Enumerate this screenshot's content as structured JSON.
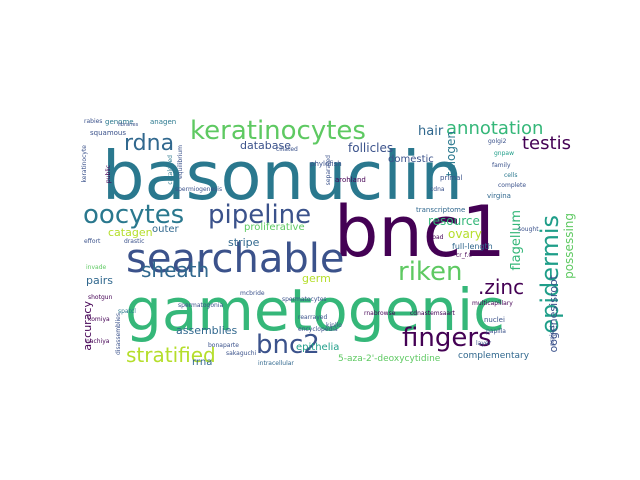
{
  "word_cloud": {
    "words": [
      {
        "text": "basonuclin",
        "color": "#2a788e"
      },
      {
        "text": "gametogenic",
        "color": "#35b779"
      },
      {
        "text": "bnc1",
        "color": "#440154"
      },
      {
        "text": "searchable",
        "color": "#3b528b"
      },
      {
        "text": "keratinocytes",
        "color": "#5ec962"
      },
      {
        "text": "pipeline",
        "color": "#3b528b"
      },
      {
        "text": "oocytes",
        "color": "#2a788e"
      },
      {
        "text": "fingers",
        "color": "#440154"
      },
      {
        "text": "epidermis",
        "color": "#1f9e89"
      },
      {
        "text": "rdna",
        "color": "#31688e"
      },
      {
        "text": "annotation",
        "color": "#35b779"
      },
      {
        "text": "sheath",
        "color": "#31688e"
      },
      {
        "text": "riken",
        "color": "#5ec962"
      },
      {
        "text": "bnc2",
        "color": "#3b528b"
      },
      {
        "text": "stratified",
        "color": "#b5de2b"
      },
      {
        "text": "testis",
        "color": "#440154"
      },
      {
        "text": ".zinc",
        "color": "#440154"
      },
      {
        "text": "database",
        "color": "#3b528b"
      },
      {
        "text": "follicles",
        "color": "#3b528b"
      },
      {
        "text": "hair",
        "color": "#31688e"
      },
      {
        "text": "domestic",
        "color": "#3b528b"
      },
      {
        "text": "telogen",
        "color": "#2a788e"
      },
      {
        "text": "flagellum",
        "color": "#35b779"
      },
      {
        "text": "possessing",
        "color": "#5ec962"
      },
      {
        "text": "oogenesisroot",
        "color": "#3b528b"
      },
      {
        "text": "ovary",
        "color": "#b5de2b"
      },
      {
        "text": "resource",
        "color": "#35b779"
      },
      {
        "text": "catagen",
        "color": "#b5de2b"
      },
      {
        "text": "outer",
        "color": "#31688e"
      },
      {
        "text": "stripe",
        "color": "#31688e"
      },
      {
        "text": "proliferative",
        "color": "#5ec962"
      },
      {
        "text": "pairs",
        "color": "#31688e"
      },
      {
        "text": "germ",
        "color": "#b5de2b"
      },
      {
        "text": "assemblies",
        "color": "#31688e"
      },
      {
        "text": "accuracy",
        "color": "#440154"
      },
      {
        "text": "epithelia",
        "color": "#1f9e89"
      },
      {
        "text": "rrna",
        "color": "#31688e"
      },
      {
        "text": "5-aza-2'-deoxycytidine",
        "color": "#5ec962"
      },
      {
        "text": "complementary",
        "color": "#31688e"
      },
      {
        "text": "full-length",
        "color": "#31688e"
      },
      {
        "text": "genome",
        "color": "#2a788e"
      },
      {
        "text": "anagen",
        "color": "#2a788e"
      },
      {
        "text": "squamous",
        "color": "#3b528b"
      },
      {
        "text": "spermiogenesis",
        "color": "#3b528b"
      },
      {
        "text": "phylofish",
        "color": "#3b528b"
      },
      {
        "text": "arohland",
        "color": "#440154"
      },
      {
        "text": "keratinocyte",
        "color": "#3b528b"
      },
      {
        "text": "transcriptome",
        "color": "#31688e"
      },
      {
        "text": "primal",
        "color": "#3b528b"
      },
      {
        "text": "virgina",
        "color": "#31688e"
      },
      {
        "text": "spermatogonia",
        "color": "#3b528b"
      },
      {
        "text": "spermatocytes",
        "color": "#3b528b"
      },
      {
        "text": "spatcl",
        "color": "#2a788e"
      },
      {
        "text": "shotgun",
        "color": "#440154"
      },
      {
        "text": "komiya",
        "color": "#440154"
      },
      {
        "text": "nachiya",
        "color": "#440154"
      },
      {
        "text": "bonaparte",
        "color": "#3b528b"
      },
      {
        "text": "sakaguchi",
        "color": "#3b528b"
      },
      {
        "text": "intracellular",
        "color": "#31688e"
      },
      {
        "text": "encyclopedia",
        "color": "#3b528b"
      },
      {
        "text": "mcbride",
        "color": "#3b528b"
      },
      {
        "text": "rearrayed",
        "color": "#3b528b"
      },
      {
        "text": "rnabrowse",
        "color": "#440154"
      },
      {
        "text": "cdnastemsaart",
        "color": "#440154"
      },
      {
        "text": "layer",
        "color": "#3b528b"
      },
      {
        "text": "project",
        "color": "#3b528b"
      },
      {
        "text": "nuclei",
        "color": "#3b528b"
      },
      {
        "text": "multicapillary",
        "color": "#440154"
      },
      {
        "text": "disassemblies",
        "color": "#3b528b"
      },
      {
        "text": "effort",
        "color": "#3b528b"
      },
      {
        "text": "drastic",
        "color": "#3b528b"
      },
      {
        "text": "golgi2",
        "color": "#3b528b"
      },
      {
        "text": "gnpaw",
        "color": "#1f9e89"
      },
      {
        "text": "sought",
        "color": "#3b528b"
      },
      {
        "text": "road",
        "color": "#440154"
      },
      {
        "text": "cr_f.0",
        "color": "#440154"
      },
      {
        "text": "cdna",
        "color": "#3b528b"
      },
      {
        "text": "libraries",
        "color": "#3b528b"
      },
      {
        "text": "public",
        "color": "#440154"
      },
      {
        "text": "rabies",
        "color": "#3b528b"
      },
      {
        "text": "invade",
        "color": "#5ec962"
      },
      {
        "text": "separated",
        "color": "#3b528b"
      },
      {
        "text": "kinllo",
        "color": "#3b528b"
      },
      {
        "text": "papilla",
        "color": "#3b528b"
      },
      {
        "text": "cells",
        "color": "#2a788e"
      },
      {
        "text": "family",
        "color": "#3b528b"
      },
      {
        "text": "ciliated",
        "color": "#3b528b"
      },
      {
        "text": "cataloged",
        "color": "#2a788e"
      },
      {
        "text": "complete",
        "color": "#3b528b"
      },
      {
        "text": "equilibrium",
        "color": "#3b528b"
      }
    ]
  }
}
